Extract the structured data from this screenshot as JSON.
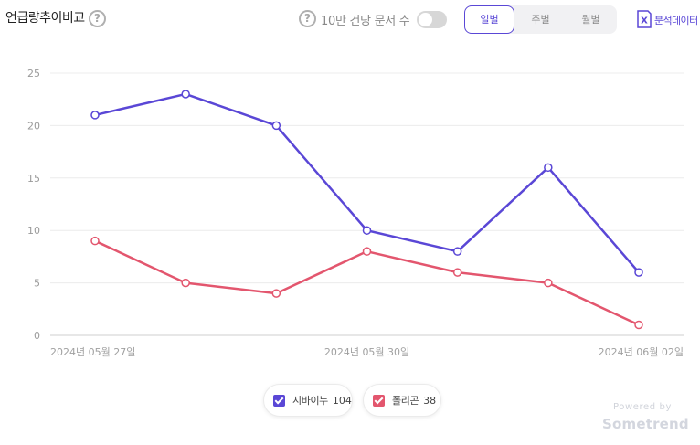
{
  "header": {
    "title": "언급량추이비교",
    "help_glyph": "?",
    "toggle_label": "10만 건당 문서 수",
    "toggle_on": false,
    "period_tabs": [
      {
        "label": "일별",
        "active": true
      },
      {
        "label": "주별",
        "active": false
      },
      {
        "label": "월별",
        "active": false
      }
    ],
    "export_label": "분석데이터",
    "export_icon_letter": "X"
  },
  "chart_data": {
    "type": "line",
    "x": [
      "2024년 05월 27일",
      "2024년 05월 28일",
      "2024년 05월 29일",
      "2024년 05월 30일",
      "2024년 05월 31일",
      "2024년 06월 01일",
      "2024년 06월 02일"
    ],
    "xticks": [
      "2024년 05월 27일",
      "2024년 05월 30일",
      "2024년 06월 02일"
    ],
    "ylim": [
      0,
      25
    ],
    "yticks": [
      0,
      5,
      10,
      15,
      20,
      25
    ],
    "grid": true,
    "series": [
      {
        "name": "시바이누",
        "color": "#5a47d6",
        "values": [
          21,
          23,
          20,
          10,
          8,
          16,
          6
        ]
      },
      {
        "name": "폴리곤",
        "color": "#e3566e",
        "values": [
          9,
          5,
          4,
          8,
          6,
          5,
          1
        ]
      }
    ]
  },
  "legend": [
    {
      "name": "시바이누",
      "count": "104",
      "color": "#5a47d6"
    },
    {
      "name": "폴리곤",
      "count": "38",
      "color": "#e3566e"
    }
  ],
  "footer": {
    "powered": "Powered by",
    "brand": "Sometrend"
  }
}
